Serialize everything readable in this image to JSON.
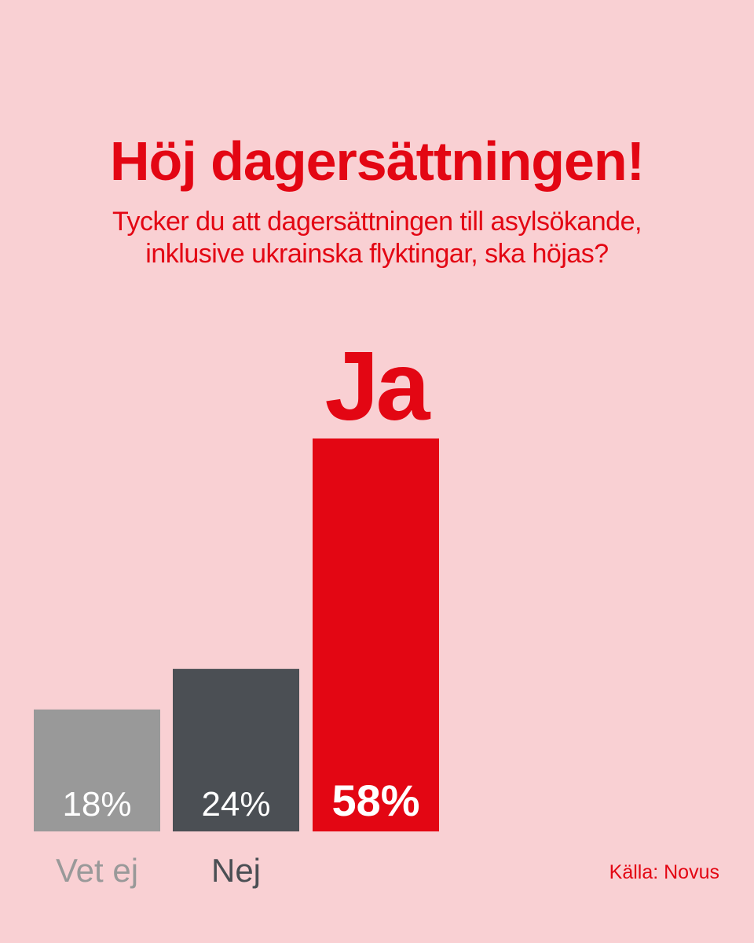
{
  "colors": {
    "background": "#f9d0d3",
    "accent": "#e30613",
    "vet_ej": "#999999",
    "nej": "#4b4f54",
    "ja": "#e30613"
  },
  "header": {
    "title": "Höj dagersättningen!",
    "subtitle_lines": [
      "Tycker du att dagersättningen till asylsökande,",
      "inklusive ukrainska flyktingar, ska höjas?"
    ]
  },
  "chart_data": {
    "type": "bar",
    "title": "Höj dagersättningen!",
    "subtitle": "Tycker du att dagersättningen till asylsökande, inklusive ukrainska flyktingar, ska höjas?",
    "categories": [
      "Vet ej",
      "Nej",
      "Ja"
    ],
    "values": [
      18,
      24,
      58
    ],
    "value_labels": [
      "18%",
      "24%",
      "58%"
    ],
    "unit": "%",
    "xlabel": "",
    "ylabel": "",
    "ylim": [
      0,
      58
    ],
    "grid": false,
    "legend": "none",
    "bar_colors": [
      "#999999",
      "#4b4f54",
      "#e30613"
    ],
    "label_colors": [
      "#999999",
      "#4b4f54",
      "#e30613"
    ]
  },
  "footer": {
    "source": "Källa: Novus"
  }
}
